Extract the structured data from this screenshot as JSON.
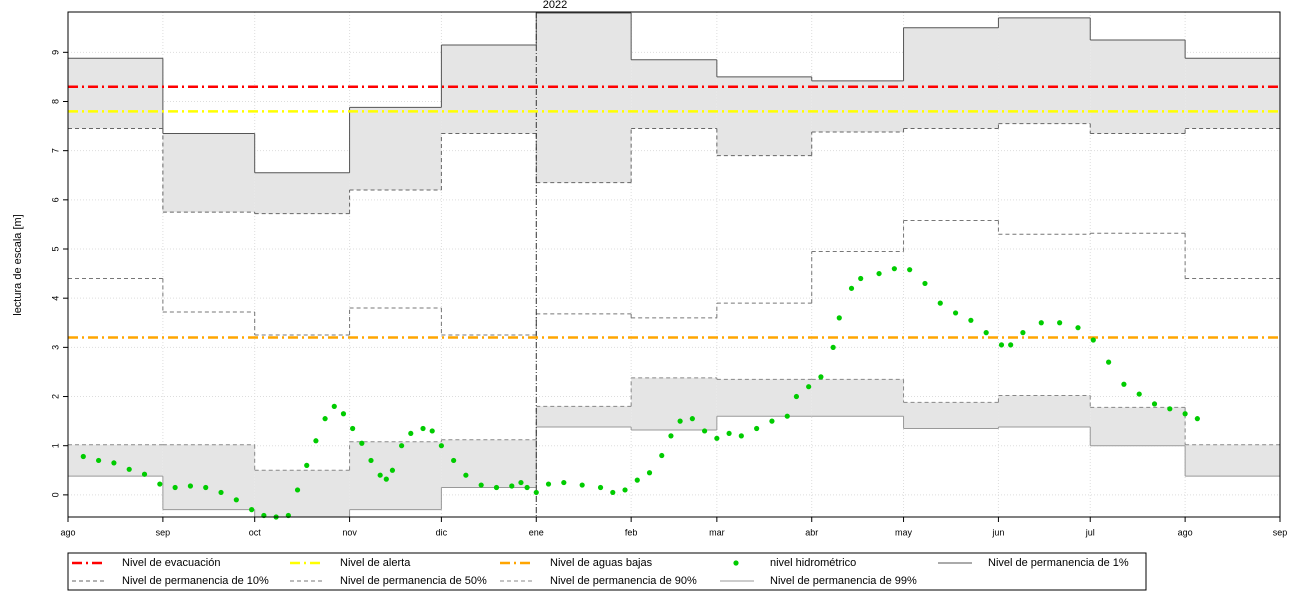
{
  "chart_data": {
    "type": "line",
    "annotation": {
      "text": "2022",
      "x": 153
    },
    "ylabel": "lectura de escala [m]",
    "xlim": [
      0,
      396
    ],
    "xticks": [
      {
        "value": 0,
        "label": "ago"
      },
      {
        "value": 31,
        "label": "sep"
      },
      {
        "value": 61,
        "label": "oct"
      },
      {
        "value": 92,
        "label": "nov"
      },
      {
        "value": 122,
        "label": "dic"
      },
      {
        "value": 153,
        "label": "ene"
      },
      {
        "value": 184,
        "label": "feb"
      },
      {
        "value": 212,
        "label": "mar"
      },
      {
        "value": 243,
        "label": "abr"
      },
      {
        "value": 273,
        "label": "may"
      },
      {
        "value": 304,
        "label": "jun"
      },
      {
        "value": 334,
        "label": "jul"
      },
      {
        "value": 365,
        "label": "ago"
      },
      {
        "value": 396,
        "label": "sep"
      }
    ],
    "ylim": [
      -0.45,
      9.82
    ],
    "yticks": [
      0,
      1,
      2,
      3,
      4,
      5,
      6,
      7,
      8,
      9
    ],
    "grid": true,
    "legend": "bottom",
    "band_fill": "#e5e5e5",
    "series": [
      {
        "name": "Nivel de evacuación",
        "kind": "hline",
        "color": "#ff0000",
        "dash": "dashdot",
        "value": 8.3
      },
      {
        "name": "Nivel de alerta",
        "kind": "hline",
        "color": "#ffff00",
        "dash": "dashdot",
        "value": 7.8
      },
      {
        "name": "Nivel de aguas bajas",
        "kind": "hline",
        "color": "#ffa500",
        "dash": "dashdot",
        "value": 3.2
      },
      {
        "name": "nivel hidrométrico",
        "kind": "points",
        "color": "#00cc00",
        "x": [
          5,
          10,
          15,
          20,
          25,
          30,
          35,
          40,
          45,
          50,
          55,
          60,
          64,
          68,
          72,
          75,
          78,
          81,
          84,
          87,
          90,
          93,
          96,
          99,
          102,
          104,
          106,
          109,
          112,
          116,
          119,
          122,
          126,
          130,
          135,
          140,
          145,
          148,
          150,
          153,
          157,
          162,
          168,
          174,
          178,
          182,
          186,
          190,
          194,
          197,
          200,
          204,
          208,
          212,
          216,
          220,
          225,
          230,
          235,
          238,
          242,
          246,
          250,
          252,
          256,
          259,
          265,
          270,
          275,
          280,
          285,
          290,
          295,
          300,
          305,
          308,
          312,
          318,
          324,
          330,
          335,
          340,
          345,
          350,
          355,
          360,
          365,
          369
        ],
        "y": [
          0.78,
          0.7,
          0.65,
          0.52,
          0.42,
          0.22,
          0.15,
          0.18,
          0.15,
          0.05,
          -0.1,
          -0.3,
          -0.42,
          -0.45,
          -0.42,
          0.1,
          0.6,
          1.1,
          1.55,
          1.8,
          1.65,
          1.35,
          1.05,
          0.7,
          0.4,
          0.32,
          0.5,
          1.0,
          1.25,
          1.35,
          1.3,
          1.0,
          0.7,
          0.4,
          0.2,
          0.15,
          0.18,
          0.25,
          0.15,
          0.05,
          0.22,
          0.25,
          0.2,
          0.15,
          0.05,
          0.1,
          0.3,
          0.45,
          0.8,
          1.2,
          1.5,
          1.55,
          1.3,
          1.15,
          1.25,
          1.2,
          1.35,
          1.5,
          1.6,
          2.0,
          2.2,
          2.4,
          3.0,
          3.6,
          4.2,
          4.4,
          4.5,
          4.6,
          4.58,
          4.3,
          3.9,
          3.7,
          3.55,
          3.3,
          3.05,
          3.05,
          3.3,
          3.5,
          3.5,
          3.4,
          3.15,
          2.7,
          2.25,
          2.05,
          1.85,
          1.75,
          1.65,
          1.55
        ]
      },
      {
        "name": "Nivel de permanencia de 1%",
        "kind": "step",
        "color": "#555555",
        "dash": "solid",
        "fill_to_next": true,
        "values": [
          8.88,
          7.35,
          6.55,
          7.88,
          9.15,
          9.8,
          8.85,
          8.5,
          8.42,
          9.5,
          9.7,
          9.25,
          8.88
        ]
      },
      {
        "name": "Nivel de permanencia de 10%",
        "kind": "step",
        "color": "#666666",
        "dash": "dashed",
        "values": [
          7.45,
          5.75,
          5.72,
          6.2,
          7.35,
          6.35,
          7.45,
          6.9,
          7.38,
          7.45,
          7.55,
          7.35,
          7.45
        ]
      },
      {
        "name": "Nivel de permanencia de 50%",
        "kind": "step",
        "color": "#777777",
        "dash": "dashed",
        "values": [
          4.4,
          3.72,
          3.25,
          3.8,
          3.25,
          3.68,
          3.6,
          3.9,
          4.95,
          5.58,
          5.3,
          5.32,
          4.4
        ]
      },
      {
        "name": "Nivel de permanencia de 90%",
        "kind": "step",
        "color": "#888888",
        "dash": "dashed",
        "fill_to_next": true,
        "values": [
          1.02,
          1.02,
          0.5,
          1.08,
          1.12,
          1.8,
          2.38,
          2.35,
          2.35,
          1.88,
          2.02,
          1.78,
          1.02
        ]
      },
      {
        "name": "Nivel de permanencia de 99%",
        "kind": "step",
        "color": "#999999",
        "dash": "solid",
        "values": [
          0.38,
          -0.3,
          -0.45,
          -0.3,
          0.15,
          1.38,
          1.32,
          1.6,
          1.6,
          1.35,
          1.38,
          1.0,
          0.38
        ]
      }
    ]
  }
}
